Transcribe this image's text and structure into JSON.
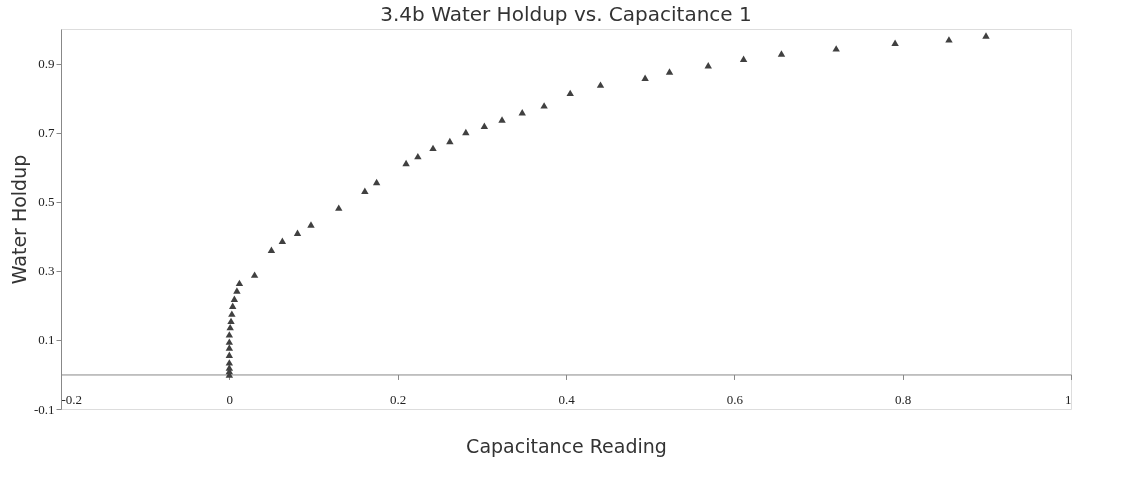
{
  "chart_data": {
    "type": "scatter",
    "title": "3.4b Water Holdup vs. Capacitance 1",
    "xlabel": "Capacitance Reading",
    "ylabel": "Water Holdup",
    "x": [
      0,
      0,
      0,
      0,
      0,
      0,
      0,
      0,
      0.001,
      0.002,
      0.003,
      0.004,
      0.006,
      0.009,
      0.012,
      0.03,
      0.05,
      0.063,
      0.081,
      0.097,
      0.13,
      0.161,
      0.175,
      0.21,
      0.224,
      0.242,
      0.262,
      0.281,
      0.303,
      0.324,
      0.348,
      0.374,
      0.405,
      0.441,
      0.494,
      0.523,
      0.569,
      0.611,
      0.656,
      0.721,
      0.791,
      0.855,
      0.899
    ],
    "series": [
      {
        "color": "#404040",
        "values": [
          0,
          0.01,
          0.02,
          0.035,
          0.057,
          0.078,
          0.095,
          0.116,
          0.137,
          0.155,
          0.176,
          0.199,
          0.219,
          0.243,
          0.265,
          0.289,
          0.361,
          0.387,
          0.41,
          0.434,
          0.483,
          0.532,
          0.557,
          0.612,
          0.632,
          0.656,
          0.676,
          0.702,
          0.72,
          0.738,
          0.759,
          0.779,
          0.815,
          0.839,
          0.859,
          0.877,
          0.895,
          0.914,
          0.929,
          0.944,
          0.96,
          0.97,
          0.981
        ]
      }
    ],
    "xlim": [
      -0.2,
      1
    ],
    "ylim": [
      -0.1,
      1.0
    ],
    "xticks": [
      -0.2,
      0,
      0.2,
      0.4,
      0.6,
      0.8,
      1
    ],
    "yticks": [
      -0.1,
      0.1,
      0.3,
      0.5,
      0.7,
      0.9
    ],
    "marker": "triangle",
    "grid": false
  }
}
